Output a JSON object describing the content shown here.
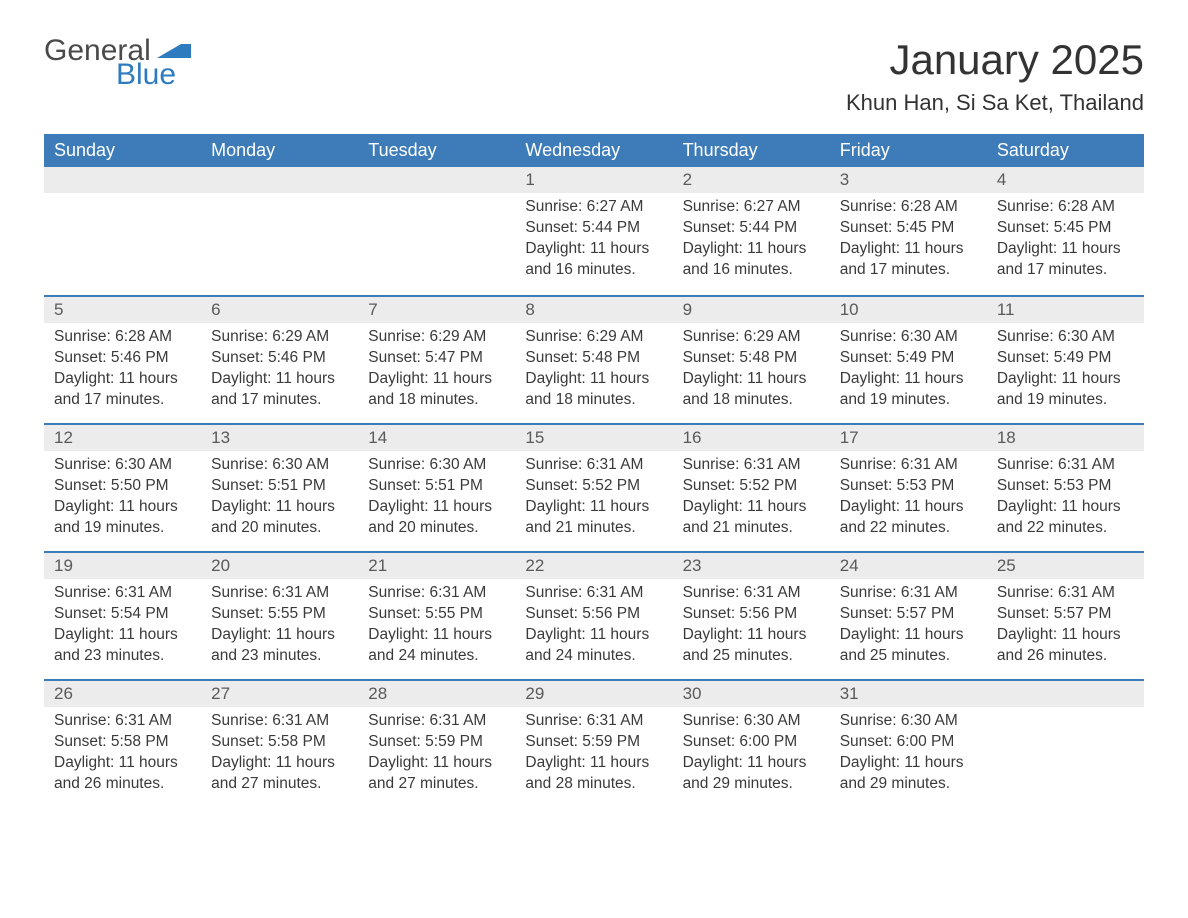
{
  "logo": {
    "text_general": "General",
    "text_blue": "Blue",
    "flag_color": "#2f7bbf",
    "general_color": "#4a4a4a",
    "blue_color": "#2f7bbf"
  },
  "title": {
    "month_year": "January 2025",
    "location": "Khun Han, Si Sa Ket, Thailand",
    "title_fontsize": 42,
    "location_fontsize": 22
  },
  "calendar": {
    "header_bg": "#3d7cb8",
    "header_fg": "#ffffff",
    "daynum_bg": "#ececec",
    "row_border_color": "#3d7cb8",
    "days_of_week": [
      "Sunday",
      "Monday",
      "Tuesday",
      "Wednesday",
      "Thursday",
      "Friday",
      "Saturday"
    ],
    "weeks": [
      [
        null,
        null,
        null,
        {
          "n": "1",
          "sunrise": "6:27 AM",
          "sunset": "5:44 PM",
          "daylight": "11 hours and 16 minutes."
        },
        {
          "n": "2",
          "sunrise": "6:27 AM",
          "sunset": "5:44 PM",
          "daylight": "11 hours and 16 minutes."
        },
        {
          "n": "3",
          "sunrise": "6:28 AM",
          "sunset": "5:45 PM",
          "daylight": "11 hours and 17 minutes."
        },
        {
          "n": "4",
          "sunrise": "6:28 AM",
          "sunset": "5:45 PM",
          "daylight": "11 hours and 17 minutes."
        }
      ],
      [
        {
          "n": "5",
          "sunrise": "6:28 AM",
          "sunset": "5:46 PM",
          "daylight": "11 hours and 17 minutes."
        },
        {
          "n": "6",
          "sunrise": "6:29 AM",
          "sunset": "5:46 PM",
          "daylight": "11 hours and 17 minutes."
        },
        {
          "n": "7",
          "sunrise": "6:29 AM",
          "sunset": "5:47 PM",
          "daylight": "11 hours and 18 minutes."
        },
        {
          "n": "8",
          "sunrise": "6:29 AM",
          "sunset": "5:48 PM",
          "daylight": "11 hours and 18 minutes."
        },
        {
          "n": "9",
          "sunrise": "6:29 AM",
          "sunset": "5:48 PM",
          "daylight": "11 hours and 18 minutes."
        },
        {
          "n": "10",
          "sunrise": "6:30 AM",
          "sunset": "5:49 PM",
          "daylight": "11 hours and 19 minutes."
        },
        {
          "n": "11",
          "sunrise": "6:30 AM",
          "sunset": "5:49 PM",
          "daylight": "11 hours and 19 minutes."
        }
      ],
      [
        {
          "n": "12",
          "sunrise": "6:30 AM",
          "sunset": "5:50 PM",
          "daylight": "11 hours and 19 minutes."
        },
        {
          "n": "13",
          "sunrise": "6:30 AM",
          "sunset": "5:51 PM",
          "daylight": "11 hours and 20 minutes."
        },
        {
          "n": "14",
          "sunrise": "6:30 AM",
          "sunset": "5:51 PM",
          "daylight": "11 hours and 20 minutes."
        },
        {
          "n": "15",
          "sunrise": "6:31 AM",
          "sunset": "5:52 PM",
          "daylight": "11 hours and 21 minutes."
        },
        {
          "n": "16",
          "sunrise": "6:31 AM",
          "sunset": "5:52 PM",
          "daylight": "11 hours and 21 minutes."
        },
        {
          "n": "17",
          "sunrise": "6:31 AM",
          "sunset": "5:53 PM",
          "daylight": "11 hours and 22 minutes."
        },
        {
          "n": "18",
          "sunrise": "6:31 AM",
          "sunset": "5:53 PM",
          "daylight": "11 hours and 22 minutes."
        }
      ],
      [
        {
          "n": "19",
          "sunrise": "6:31 AM",
          "sunset": "5:54 PM",
          "daylight": "11 hours and 23 minutes."
        },
        {
          "n": "20",
          "sunrise": "6:31 AM",
          "sunset": "5:55 PM",
          "daylight": "11 hours and 23 minutes."
        },
        {
          "n": "21",
          "sunrise": "6:31 AM",
          "sunset": "5:55 PM",
          "daylight": "11 hours and 24 minutes."
        },
        {
          "n": "22",
          "sunrise": "6:31 AM",
          "sunset": "5:56 PM",
          "daylight": "11 hours and 24 minutes."
        },
        {
          "n": "23",
          "sunrise": "6:31 AM",
          "sunset": "5:56 PM",
          "daylight": "11 hours and 25 minutes."
        },
        {
          "n": "24",
          "sunrise": "6:31 AM",
          "sunset": "5:57 PM",
          "daylight": "11 hours and 25 minutes."
        },
        {
          "n": "25",
          "sunrise": "6:31 AM",
          "sunset": "5:57 PM",
          "daylight": "11 hours and 26 minutes."
        }
      ],
      [
        {
          "n": "26",
          "sunrise": "6:31 AM",
          "sunset": "5:58 PM",
          "daylight": "11 hours and 26 minutes."
        },
        {
          "n": "27",
          "sunrise": "6:31 AM",
          "sunset": "5:58 PM",
          "daylight": "11 hours and 27 minutes."
        },
        {
          "n": "28",
          "sunrise": "6:31 AM",
          "sunset": "5:59 PM",
          "daylight": "11 hours and 27 minutes."
        },
        {
          "n": "29",
          "sunrise": "6:31 AM",
          "sunset": "5:59 PM",
          "daylight": "11 hours and 28 minutes."
        },
        {
          "n": "30",
          "sunrise": "6:30 AM",
          "sunset": "6:00 PM",
          "daylight": "11 hours and 29 minutes."
        },
        {
          "n": "31",
          "sunrise": "6:30 AM",
          "sunset": "6:00 PM",
          "daylight": "11 hours and 29 minutes."
        },
        null
      ]
    ],
    "labels": {
      "sunrise": "Sunrise:",
      "sunset": "Sunset:",
      "daylight": "Daylight:"
    }
  }
}
